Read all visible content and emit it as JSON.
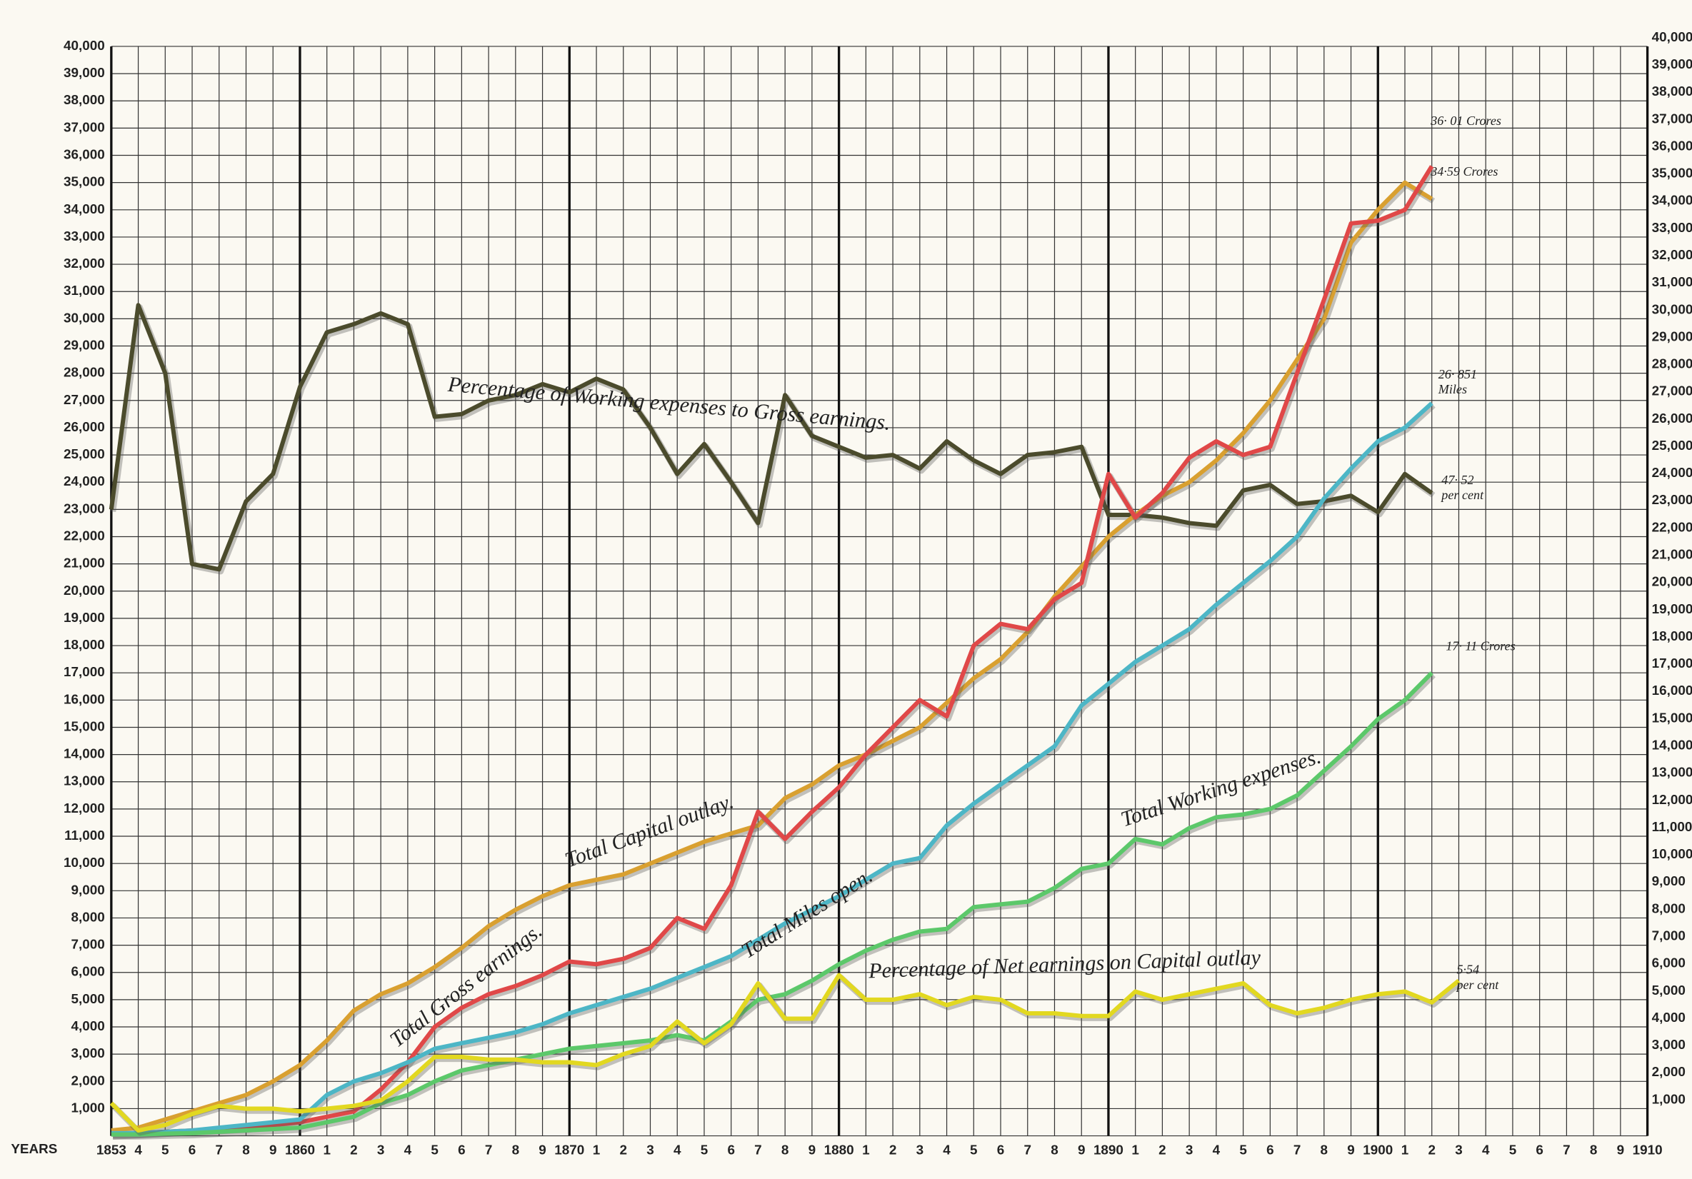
{
  "chart_data": {
    "type": "line",
    "x_label": "YEARS",
    "categories": [
      "1853",
      "4",
      "5",
      "6",
      "7",
      "8",
      "9",
      "1860",
      "1",
      "2",
      "3",
      "4",
      "5",
      "6",
      "7",
      "8",
      "9",
      "1870",
      "1",
      "2",
      "3",
      "4",
      "5",
      "6",
      "7",
      "8",
      "9",
      "1880",
      "1",
      "2",
      "3",
      "4",
      "5",
      "6",
      "7",
      "8",
      "9",
      "1890",
      "1",
      "2",
      "3",
      "4",
      "5",
      "6",
      "7",
      "8",
      "9",
      "1900",
      "1",
      "2",
      "3",
      "4",
      "5",
      "6",
      "7",
      "8",
      "9",
      "1910"
    ],
    "major_categories": [
      0,
      7,
      17,
      27,
      37,
      47,
      57
    ],
    "ylim": [
      0,
      40000
    ],
    "yticks": [
      {
        "value": 1000,
        "label": "1,000"
      },
      {
        "value": 2000,
        "label": "2,000"
      },
      {
        "value": 3000,
        "label": "3,000"
      },
      {
        "value": 4000,
        "label": "4,000"
      },
      {
        "value": 5000,
        "label": "5,000"
      },
      {
        "value": 6000,
        "label": "6,000"
      },
      {
        "value": 7000,
        "label": "7,000"
      },
      {
        "value": 8000,
        "label": "8,000"
      },
      {
        "value": 9000,
        "label": "9,000"
      },
      {
        "value": 10000,
        "label": "10,000"
      },
      {
        "value": 11000,
        "label": "11,000"
      },
      {
        "value": 12000,
        "label": "12,000"
      },
      {
        "value": 13000,
        "label": "13,000"
      },
      {
        "value": 14000,
        "label": "14,000"
      },
      {
        "value": 15000,
        "label": "15,000"
      },
      {
        "value": 16000,
        "label": "16,000"
      },
      {
        "value": 17000,
        "label": "17,000"
      },
      {
        "value": 18000,
        "label": "18,000"
      },
      {
        "value": 19000,
        "label": "19,000"
      },
      {
        "value": 20000,
        "label": "20,000"
      },
      {
        "value": 21000,
        "label": "21,000"
      },
      {
        "value": 22000,
        "label": "22,000"
      },
      {
        "value": 23000,
        "label": "23,000"
      },
      {
        "value": 24000,
        "label": "24,000"
      },
      {
        "value": 25000,
        "label": "25,000"
      },
      {
        "value": 26000,
        "label": "26,000"
      },
      {
        "value": 27000,
        "label": "27,000"
      },
      {
        "value": 28000,
        "label": "28,000"
      },
      {
        "value": 29000,
        "label": "29,000"
      },
      {
        "value": 30000,
        "label": "30,000"
      },
      {
        "value": 31000,
        "label": "31,000"
      },
      {
        "value": 32000,
        "label": "32,000"
      },
      {
        "value": 33000,
        "label": "33,000"
      },
      {
        "value": 34000,
        "label": "34,000"
      },
      {
        "value": 35000,
        "label": "35,000"
      },
      {
        "value": 36000,
        "label": "36,000"
      },
      {
        "value": 37000,
        "label": "37,000"
      },
      {
        "value": 38000,
        "label": "38,000"
      },
      {
        "value": 39000,
        "label": "39,000"
      },
      {
        "value": 40000,
        "label": "40,000"
      }
    ],
    "grid": true,
    "series": [
      {
        "name": "Percentage of Working expenses to Gross earnings.",
        "color": "#4b4b2c",
        "end_label": [
          "47· 52",
          "per cent"
        ],
        "values": [
          23000,
          30500,
          28000,
          21000,
          20800,
          23300,
          24300,
          27500,
          29500,
          29800,
          30200,
          29800,
          26400,
          26500,
          27000,
          27200,
          27600,
          27300,
          27800,
          27400,
          26000,
          24300,
          25400,
          24000,
          22500,
          27200,
          25700,
          25300,
          24900,
          25000,
          24500,
          25500,
          24800,
          24300,
          25000,
          25100,
          25300,
          22800,
          22800,
          22700,
          22500,
          22400,
          23700,
          23900,
          23200,
          23300,
          23500,
          22900,
          24300,
          23600,
          null,
          null,
          null,
          null,
          null,
          null,
          null,
          null
        ]
      },
      {
        "name": "Total Capital outlay.",
        "color": "#d9a030",
        "end_label": [
          "34·59 Crores"
        ],
        "values": [
          200,
          300,
          600,
          900,
          1200,
          1500,
          2000,
          2600,
          3500,
          4600,
          5200,
          5600,
          6200,
          6900,
          7700,
          8300,
          8800,
          9200,
          9400,
          9600,
          10000,
          10400,
          10800,
          11100,
          11400,
          12400,
          12900,
          13600,
          14000,
          14500,
          15000,
          15900,
          16800,
          17500,
          18500,
          19800,
          20900,
          22000,
          22800,
          23500,
          24000,
          24800,
          25800,
          27000,
          28500,
          30000,
          32800,
          34000,
          35000,
          34400,
          null,
          null,
          null,
          null,
          null,
          null,
          null,
          null
        ]
      },
      {
        "name": "Total Gross earnings.",
        "color": "#e04848",
        "end_label": [
          "36· 01 Crores"
        ],
        "values": [
          50,
          100,
          150,
          200,
          250,
          300,
          400,
          500,
          700,
          900,
          1700,
          2700,
          4000,
          4700,
          5200,
          5500,
          5900,
          6400,
          6300,
          6500,
          6900,
          8000,
          7600,
          9200,
          11900,
          10900,
          11900,
          12800,
          14000,
          15000,
          16000,
          15400,
          18000,
          18800,
          18600,
          19700,
          20300,
          24300,
          22700,
          23600,
          24900,
          25500,
          25000,
          25300,
          28000,
          30700,
          33500,
          33600,
          34000,
          35600,
          null,
          null,
          null,
          null,
          null,
          null,
          null,
          null
        ]
      },
      {
        "name": "Total Miles open.",
        "color": "#4db6c6",
        "end_label": [
          "26· 851",
          "Miles"
        ],
        "values": [
          100,
          100,
          150,
          200,
          300,
          400,
          500,
          600,
          1500,
          2000,
          2300,
          2700,
          3200,
          3400,
          3600,
          3800,
          4100,
          4500,
          4800,
          5100,
          5400,
          5800,
          6200,
          6600,
          7200,
          7800,
          8300,
          8800,
          9400,
          10000,
          10200,
          11400,
          12200,
          12900,
          13600,
          14300,
          15800,
          16600,
          17400,
          18000,
          18600,
          19500,
          20300,
          21100,
          22000,
          23400,
          24500,
          25500,
          26000,
          26900,
          null,
          null,
          null,
          null,
          null,
          null,
          null,
          null
        ]
      },
      {
        "name": "Total Working expenses.",
        "color": "#5cc86a",
        "end_label": [
          "17· 11 Crores"
        ],
        "values": [
          50,
          50,
          80,
          100,
          150,
          200,
          250,
          300,
          500,
          700,
          1200,
          1500,
          2000,
          2400,
          2600,
          2800,
          3000,
          3200,
          3300,
          3400,
          3500,
          3700,
          3500,
          4200,
          5000,
          5200,
          5700,
          6300,
          6800,
          7200,
          7500,
          7600,
          8400,
          8500,
          8600,
          9100,
          9800,
          10000,
          10900,
          10700,
          11300,
          11700,
          11800,
          12000,
          12500,
          13400,
          14300,
          15300,
          16000,
          17000,
          null,
          null,
          null,
          null,
          null,
          null,
          null,
          null
        ]
      },
      {
        "name": "Percentage of Net earnings on Capital outlay",
        "color": "#e2d820",
        "end_label": [
          "5·54",
          "per cent"
        ],
        "values": [
          1200,
          200,
          400,
          800,
          1100,
          1000,
          1000,
          900,
          1000,
          1100,
          1300,
          2000,
          2900,
          2900,
          2800,
          2800,
          2700,
          2700,
          2600,
          3000,
          3300,
          4200,
          3400,
          4100,
          5600,
          4300,
          4300,
          5900,
          5000,
          5000,
          5200,
          4800,
          5100,
          5000,
          4500,
          4500,
          4400,
          4400,
          5300,
          5000,
          5200,
          5400,
          5600,
          4800,
          4500,
          4700,
          5000,
          5200,
          5300,
          4900,
          5700,
          null,
          null,
          null,
          null,
          null,
          null,
          null
        ]
      }
    ]
  }
}
